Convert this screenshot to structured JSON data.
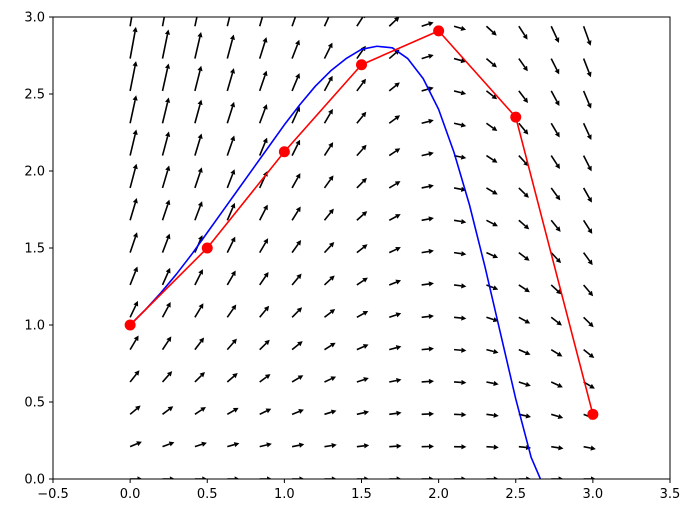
{
  "chart_data": {
    "type": "line",
    "title": "",
    "xlabel": "",
    "ylabel": "",
    "xlim": [
      -0.5,
      3.5
    ],
    "ylim": [
      0.0,
      3.0
    ],
    "grid": false,
    "x_ticks": [
      -0.5,
      0.0,
      0.5,
      1.0,
      1.5,
      2.0,
      2.5,
      3.0,
      3.5
    ],
    "x_tick_labels": [
      "−0.5",
      "0.0",
      "0.5",
      "1.0",
      "1.5",
      "2.0",
      "2.5",
      "3.0",
      "3.5"
    ],
    "y_ticks": [
      0.0,
      0.5,
      1.0,
      1.5,
      2.0,
      2.5,
      3.0
    ],
    "y_tick_labels": [
      "0.0",
      "0.5",
      "1.0",
      "1.5",
      "2.0",
      "2.5",
      "3.0"
    ],
    "series": [
      {
        "kind": "smooth-line",
        "color": "#0000ff",
        "x": [
          0.0,
          0.1,
          0.2,
          0.3,
          0.4,
          0.5,
          0.6,
          0.7,
          0.8,
          0.9,
          1.0,
          1.1,
          1.2,
          1.3,
          1.4,
          1.5,
          1.6,
          1.7,
          1.8,
          1.9,
          2.0,
          2.1,
          2.2,
          2.3,
          2.4,
          2.5,
          2.6,
          2.66
        ],
        "y": [
          1.0,
          1.1,
          1.21,
          1.33,
          1.46,
          1.6,
          1.74,
          1.88,
          2.02,
          2.16,
          2.3,
          2.43,
          2.55,
          2.65,
          2.73,
          2.79,
          2.81,
          2.8,
          2.73,
          2.6,
          2.4,
          2.12,
          1.78,
          1.38,
          0.95,
          0.52,
          0.14,
          0.0
        ]
      },
      {
        "kind": "line-with-markers",
        "color": "#ff0000",
        "x": [
          0.0,
          0.5,
          1.0,
          1.5,
          2.0,
          2.5,
          3.0
        ],
        "y": [
          1.0,
          1.5,
          2.125,
          2.69,
          2.91,
          2.35,
          0.42
        ]
      }
    ],
    "vector_field": {
      "kind": "quiver",
      "color": "#000000",
      "x_start": 0.0,
      "x_step": 0.21,
      "x_count": 15,
      "y_start": 0.0,
      "y_step": 0.21,
      "y_count": 15
    }
  }
}
